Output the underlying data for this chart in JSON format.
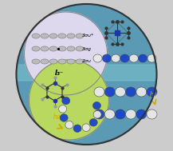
{
  "figure_size": [
    2.17,
    1.89
  ],
  "dpi": 100,
  "outer_bg": "#5a9ab5",
  "horizon_color": "#7bbfcc",
  "top_left_circle_bg": "#ddd8ee",
  "bottom_left_circle_bg": "#b8d860",
  "top_right_bg": "#90c890",
  "bottom_right_bg": "#88b870",
  "orbital_color": "#bbbbbb",
  "orbital_edge": "#888888",
  "blue_sphere": "#1a44cc",
  "white_sphere": "#e8e8e8",
  "bond_color": "#333333",
  "N_color": "#2233aa",
  "C_color": "#333333",
  "H_color": "#999999",
  "hv_color": "#ccaa00",
  "label_color": "#222222",
  "labels_orbitals": [
    "3σu*",
    "3σg",
    "2σu"
  ],
  "I3_label": "I₃⁻",
  "hv_label": "hν"
}
